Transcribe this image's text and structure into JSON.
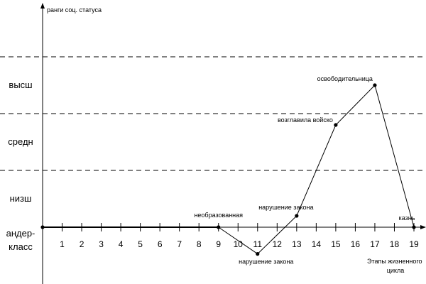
{
  "chart_data": {
    "type": "line",
    "ylabel": "ранги соц. статуса",
    "xlabel_lines": [
      "Этапы жизненного",
      "цикла"
    ],
    "xlim": [
      0,
      19
    ],
    "ylim": [
      0,
      4
    ],
    "grid": "dashed horizontal lines at 1, 2, 3",
    "y_bands": [
      {
        "value": 0,
        "lines": [
          "андер-",
          "класс"
        ]
      },
      {
        "value": 1,
        "lines": [
          "низш"
        ]
      },
      {
        "value": 2,
        "lines": [
          "средн"
        ]
      },
      {
        "value": 3,
        "lines": [
          "высш"
        ]
      }
    ],
    "x_ticks": [
      1,
      2,
      3,
      4,
      5,
      6,
      7,
      8,
      9,
      10,
      11,
      12,
      13,
      14,
      15,
      16,
      17,
      18,
      19
    ],
    "points": [
      {
        "x": 0,
        "y": 0,
        "label": ""
      },
      {
        "x": 9,
        "y": 0,
        "label": "необразованная"
      },
      {
        "x": 11,
        "y": -0.47,
        "label": "нарушение закона"
      },
      {
        "x": 13,
        "y": 0.2,
        "label": "нарушение закона"
      },
      {
        "x": 15,
        "y": 1.8,
        "label": "возглавила войско"
      },
      {
        "x": 17,
        "y": 2.5,
        "label": "освободительница"
      },
      {
        "x": 19,
        "y": 0,
        "label": "казнь"
      }
    ]
  }
}
